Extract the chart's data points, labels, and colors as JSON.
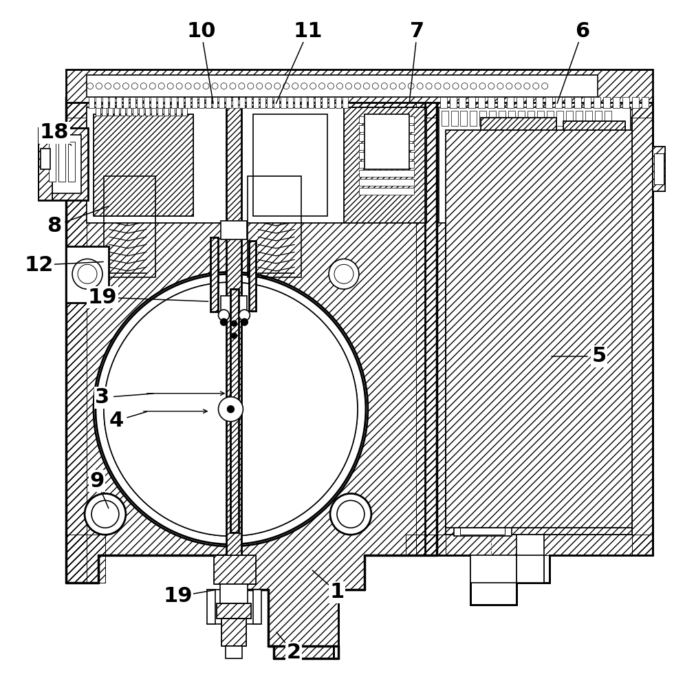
{
  "bg_color": "#ffffff",
  "line_color": "#000000",
  "figsize": [
    9.8,
    10.0
  ],
  "dpi": 100,
  "labels": [
    [
      "1",
      490,
      862,
      452,
      828
    ],
    [
      "2",
      427,
      950,
      400,
      918
    ],
    [
      "3",
      148,
      578,
      225,
      572
    ],
    [
      "4",
      168,
      612,
      215,
      598
    ],
    [
      "5",
      872,
      518,
      800,
      518
    ],
    [
      "6",
      848,
      44,
      810,
      152
    ],
    [
      "7",
      607,
      44,
      595,
      152
    ],
    [
      "8",
      78,
      328,
      160,
      298
    ],
    [
      "9",
      140,
      700,
      158,
      742
    ],
    [
      "10",
      292,
      44,
      310,
      152
    ],
    [
      "11",
      448,
      44,
      400,
      152
    ],
    [
      "12",
      55,
      385,
      152,
      380
    ],
    [
      "18",
      78,
      192,
      105,
      212
    ],
    [
      "19",
      148,
      432,
      305,
      438
    ],
    [
      "19",
      258,
      868,
      315,
      858
    ]
  ]
}
